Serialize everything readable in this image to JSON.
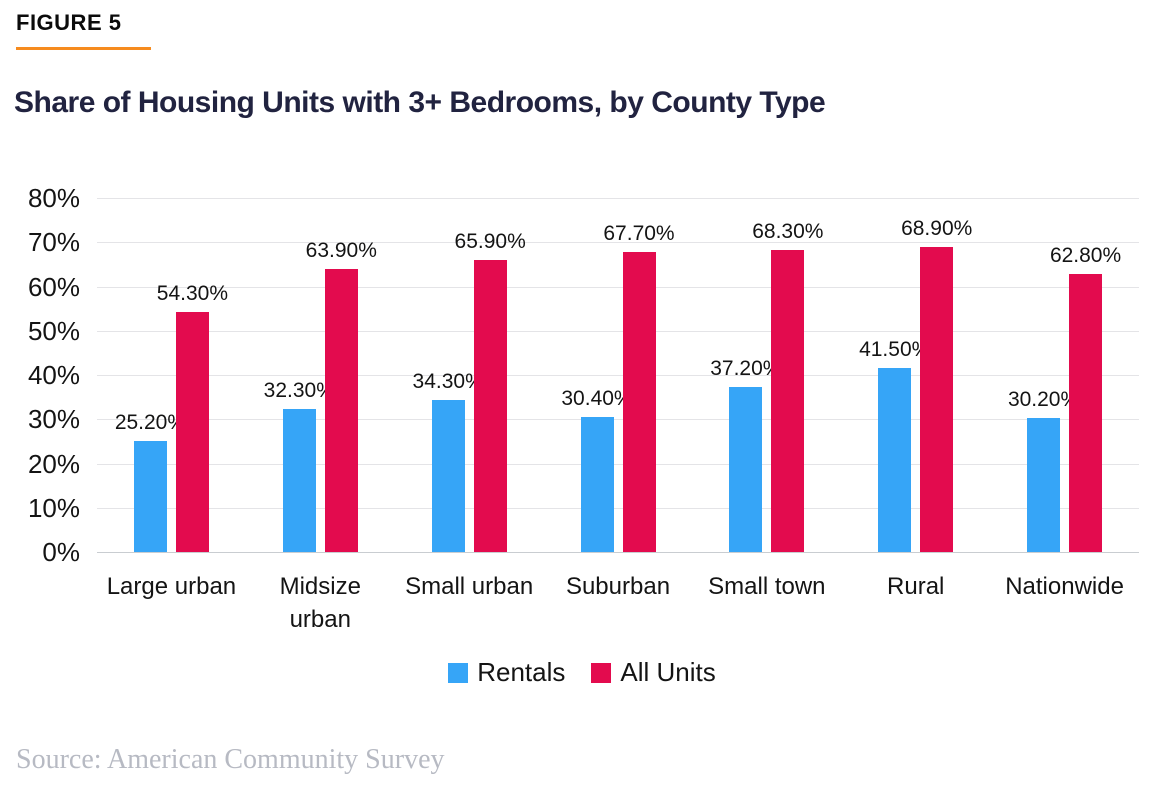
{
  "figure_label": "FIGURE 5",
  "title": "Share of Housing Units with 3+ Bedrooms, by County Type",
  "source": "Source: American Community Survey",
  "colors": {
    "rentals_blue": "#36A5F7",
    "all_units_red": "#E30B4E",
    "accent_orange": "#F68B1E",
    "title_navy": "#212340"
  },
  "chart_data": {
    "type": "bar",
    "title": "Share of Housing Units with 3+ Bedrooms, by County Type",
    "categories": [
      "Large urban",
      "Midsize\nurban",
      "Small urban",
      "Suburban",
      "Small town",
      "Rural",
      "Nationwide"
    ],
    "series": [
      {
        "name": "Rentals",
        "color": "#36A5F7",
        "values": [
          25.2,
          32.3,
          34.3,
          30.4,
          37.2,
          41.5,
          30.2
        ],
        "labels": [
          "25.20%",
          "32.30%",
          "34.30%",
          "30.40%",
          "37.20%",
          "41.50%",
          "30.20%"
        ]
      },
      {
        "name": "All Units",
        "color": "#E30B4E",
        "values": [
          54.3,
          63.9,
          65.9,
          67.7,
          68.3,
          68.9,
          62.8
        ],
        "labels": [
          "54.30%",
          "63.90%",
          "65.90%",
          "67.70%",
          "68.30%",
          "68.90%",
          "62.80%"
        ]
      }
    ],
    "y_ticks": [
      "80%",
      "70%",
      "60%",
      "50%",
      "40%",
      "30%",
      "20%",
      "10%",
      "0%"
    ],
    "ylim": [
      0,
      80
    ],
    "xlabel": "",
    "ylabel": "",
    "grid": true,
    "legend_position": "bottom"
  }
}
